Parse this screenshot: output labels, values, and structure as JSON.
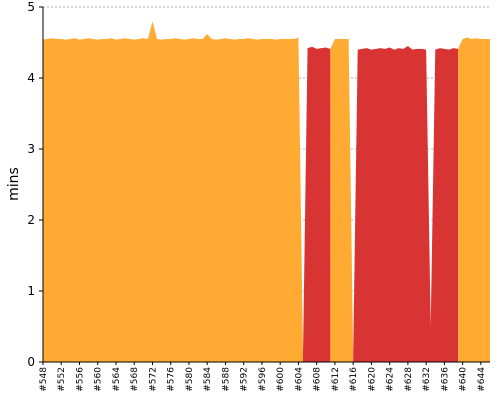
{
  "chart_data": {
    "type": "area",
    "ylabel": "mins",
    "xlabel": "",
    "title": "",
    "ylim": [
      0,
      5
    ],
    "yticks": [
      "0",
      "1",
      "2",
      "3",
      "4",
      "5"
    ],
    "grid": true,
    "x_tick_labels": [
      "#548",
      "#552",
      "#556",
      "#560",
      "#564",
      "#568",
      "#572",
      "#576",
      "#580",
      "#584",
      "#588",
      "#592",
      "#596",
      "#600",
      "#604",
      "#608",
      "#612",
      "#616",
      "#620",
      "#624",
      "#628",
      "#632",
      "#636",
      "#640",
      "#644"
    ],
    "x_range": [
      548,
      646
    ],
    "colors": {
      "pass": "#ffaa33",
      "fail": "#d93434",
      "grid": "#999999"
    },
    "segments": [
      {
        "status": "pass",
        "points": [
          [
            548,
            4.54
          ],
          [
            549,
            4.55
          ],
          [
            550,
            4.56
          ],
          [
            551,
            4.55
          ],
          [
            552,
            4.55
          ],
          [
            553,
            4.54
          ],
          [
            554,
            4.55
          ],
          [
            555,
            4.56
          ],
          [
            556,
            4.54
          ],
          [
            557,
            4.55
          ],
          [
            558,
            4.56
          ],
          [
            559,
            4.55
          ],
          [
            560,
            4.54
          ],
          [
            561,
            4.55
          ],
          [
            562,
            4.55
          ],
          [
            563,
            4.56
          ],
          [
            564,
            4.54
          ],
          [
            565,
            4.55
          ],
          [
            566,
            4.56
          ],
          [
            567,
            4.55
          ],
          [
            568,
            4.54
          ],
          [
            569,
            4.55
          ],
          [
            570,
            4.56
          ],
          [
            571,
            4.55
          ],
          [
            572,
            4.8
          ],
          [
            573,
            4.55
          ],
          [
            574,
            4.54
          ],
          [
            575,
            4.55
          ],
          [
            576,
            4.55
          ],
          [
            577,
            4.56
          ],
          [
            578,
            4.55
          ],
          [
            579,
            4.54
          ],
          [
            580,
            4.55
          ],
          [
            581,
            4.56
          ],
          [
            582,
            4.55
          ],
          [
            583,
            4.55
          ],
          [
            584,
            4.62
          ],
          [
            585,
            4.55
          ],
          [
            586,
            4.54
          ],
          [
            587,
            4.55
          ],
          [
            588,
            4.56
          ],
          [
            589,
            4.55
          ],
          [
            590,
            4.54
          ],
          [
            591,
            4.55
          ],
          [
            592,
            4.55
          ],
          [
            593,
            4.56
          ],
          [
            594,
            4.55
          ],
          [
            595,
            4.54
          ],
          [
            596,
            4.55
          ],
          [
            597,
            4.55
          ],
          [
            598,
            4.55
          ],
          [
            599,
            4.54
          ],
          [
            600,
            4.55
          ],
          [
            601,
            4.55
          ],
          [
            602,
            4.55
          ],
          [
            603,
            4.55
          ],
          [
            604,
            4.57
          ],
          [
            605,
            0.1
          ]
        ]
      },
      {
        "status": "fail",
        "points": [
          [
            605,
            0.1
          ],
          [
            606,
            4.42
          ],
          [
            607,
            4.44
          ],
          [
            608,
            4.41
          ],
          [
            609,
            4.42
          ],
          [
            610,
            4.43
          ],
          [
            611,
            4.41
          ]
        ]
      },
      {
        "status": "pass",
        "points": [
          [
            611,
            4.41
          ],
          [
            612,
            4.55
          ],
          [
            613,
            4.55
          ],
          [
            614,
            4.55
          ],
          [
            615,
            4.55
          ],
          [
            616,
            0.1
          ]
        ]
      },
      {
        "status": "fail",
        "points": [
          [
            616,
            0.1
          ],
          [
            617,
            4.4
          ],
          [
            618,
            4.41
          ],
          [
            619,
            4.42
          ],
          [
            620,
            4.4
          ],
          [
            621,
            4.41
          ],
          [
            622,
            4.42
          ],
          [
            623,
            4.41
          ],
          [
            624,
            4.43
          ],
          [
            625,
            4.4
          ],
          [
            626,
            4.42
          ],
          [
            627,
            4.41
          ],
          [
            628,
            4.45
          ],
          [
            629,
            4.4
          ],
          [
            630,
            4.41
          ],
          [
            631,
            4.41
          ],
          [
            632,
            4.4
          ],
          [
            633,
            0.5
          ],
          [
            634,
            4.4
          ],
          [
            635,
            4.42
          ],
          [
            636,
            4.41
          ],
          [
            637,
            4.4
          ],
          [
            638,
            4.42
          ],
          [
            639,
            4.41
          ]
        ]
      },
      {
        "status": "pass",
        "points": [
          [
            639,
            4.41
          ],
          [
            640,
            4.55
          ],
          [
            641,
            4.57
          ],
          [
            642,
            4.55
          ],
          [
            643,
            4.56
          ],
          [
            644,
            4.55
          ],
          [
            645,
            4.55
          ],
          [
            646,
            4.55
          ]
        ]
      }
    ]
  }
}
